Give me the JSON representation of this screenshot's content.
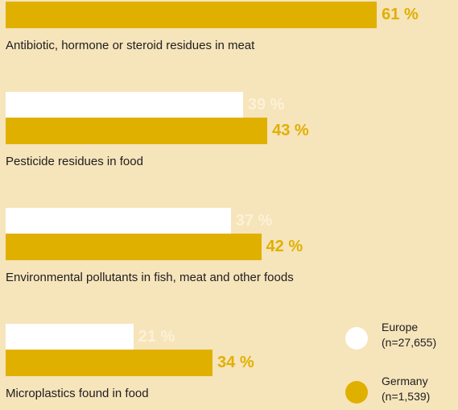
{
  "chart_data": {
    "type": "bar",
    "orientation": "horizontal",
    "categories": [
      "Antibiotic, hormone or steroid residues in meat",
      "Pesticide residues in food",
      "Environmental pollutants in fish, meat and other foods",
      "Microplastics found in food"
    ],
    "series": [
      {
        "name": "Europe (n=27,655)",
        "color": "#ffffff",
        "values": [
          null,
          39,
          37,
          21
        ],
        "value_labels": [
          null,
          "39 %",
          "37 %",
          "21 %"
        ]
      },
      {
        "name": "Germany (n=1,539)",
        "color": "#e0b000",
        "values": [
          61,
          43,
          42,
          34
        ],
        "value_labels": [
          "61 %",
          "43 %",
          "42 %",
          "34 %"
        ]
      }
    ]
  }
}
